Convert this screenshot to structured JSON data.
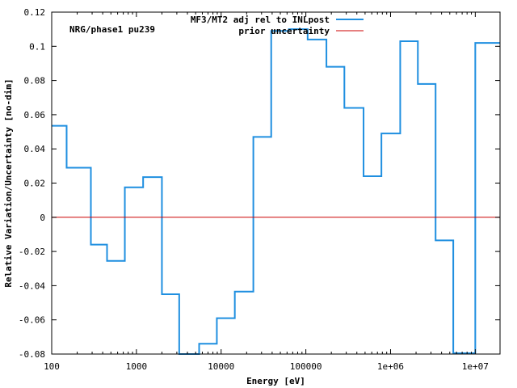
{
  "chart_data": {
    "type": "line",
    "xscale": "log",
    "xlabel": "Energy [eV]",
    "ylabel": "Relative Variation/Uncertainty [no-dim]",
    "xlim": [
      100,
      19600000
    ],
    "ylim": [
      -0.08,
      0.12
    ],
    "x_ticks": [
      {
        "value": 100,
        "label": "100"
      },
      {
        "value": 1000,
        "label": "1000"
      },
      {
        "value": 10000,
        "label": "10000"
      },
      {
        "value": 100000,
        "label": "100000"
      },
      {
        "value": 1000000,
        "label": "1e+06"
      },
      {
        "value": 10000000,
        "label": "1e+07"
      }
    ],
    "y_ticks": [
      {
        "value": -0.08,
        "label": "-0.08"
      },
      {
        "value": -0.06,
        "label": "-0.06"
      },
      {
        "value": -0.04,
        "label": "-0.04"
      },
      {
        "value": -0.02,
        "label": "-0.02"
      },
      {
        "value": 0,
        "label": "0"
      },
      {
        "value": 0.02,
        "label": "0.02"
      },
      {
        "value": 0.04,
        "label": "0.04"
      },
      {
        "value": 0.06,
        "label": "0.06"
      },
      {
        "value": 0.08,
        "label": "0.08"
      },
      {
        "value": 0.1,
        "label": "0.1"
      },
      {
        "value": 0.12,
        "label": "0.12"
      }
    ],
    "grid": false,
    "legend_position": "top-right",
    "annotation": "NRG/phase1 pu239",
    "series": [
      {
        "name": "MF3/MT2 adj rel to INLpost",
        "color": "#1f8fe0",
        "style": "step",
        "bin_edges": [
          100,
          150,
          290,
          450,
          730,
          1200,
          2000,
          3200,
          5500,
          8900,
          14500,
          24000,
          39000,
          63000,
          105000,
          175000,
          285000,
          480000,
          780000,
          1300000,
          2100000,
          3400000,
          5500000,
          10000000,
          19600000
        ],
        "values": [
          0.0535,
          0.029,
          -0.016,
          -0.0255,
          0.0175,
          0.0235,
          -0.045,
          -0.0805,
          -0.074,
          -0.059,
          -0.0435,
          0.047,
          0.109,
          0.11,
          0.104,
          0.088,
          0.064,
          0.024,
          0.049,
          0.103,
          0.078,
          -0.0135,
          -0.0795,
          0.102
        ]
      },
      {
        "name": "prior uncertainty",
        "color": "#cc0000",
        "style": "line",
        "x": [
          100,
          19600000
        ],
        "y": [
          0,
          0
        ]
      }
    ]
  }
}
